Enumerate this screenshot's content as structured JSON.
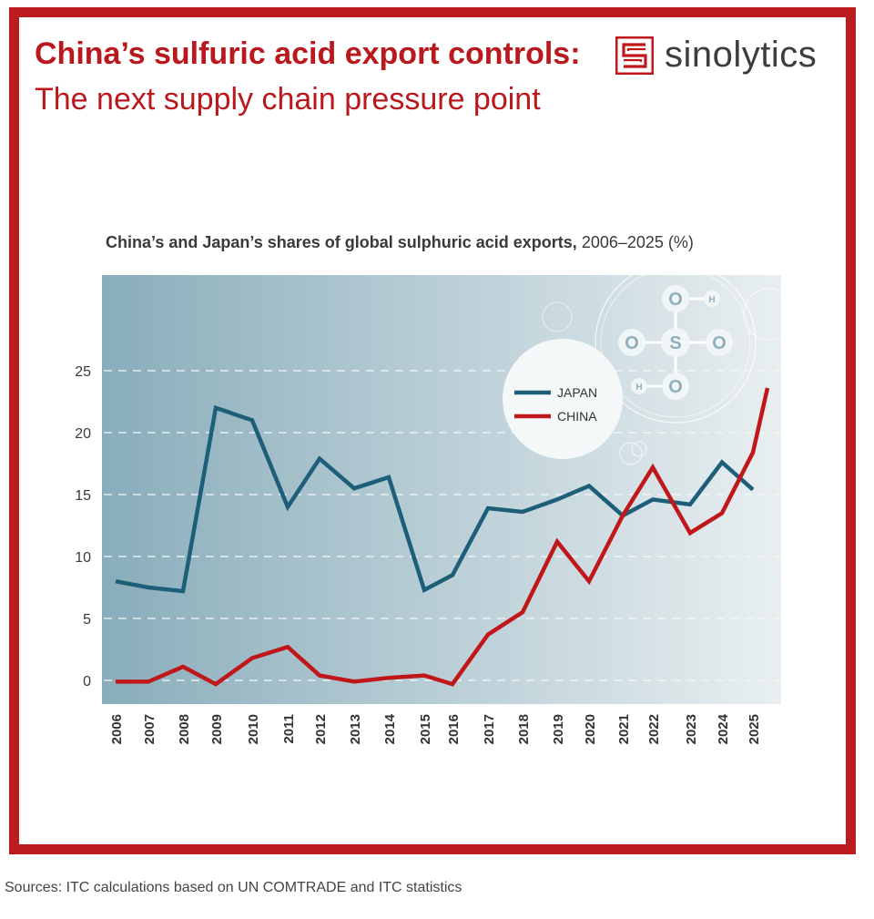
{
  "header": {
    "title_bold": "China’s sulfuric acid export controls:",
    "title_regular": "The next supply chain pressure point",
    "brand": "sinolytics"
  },
  "chart": {
    "title_bold": "China’s and Japan’s shares of global sulphuric acid exports,",
    "title_regular": "2006–2025 (%)",
    "legend": [
      {
        "label": "JAPAN",
        "color": "#1d5f78"
      },
      {
        "label": "CHINA",
        "color": "#c0171b"
      }
    ],
    "molecule": {
      "center": "S",
      "oxygens": [
        "O",
        "O",
        "O",
        "O"
      ],
      "hydrogens": [
        "H",
        "H"
      ]
    }
  },
  "footer": {
    "source": "Sources: ITC calculations based on UN COMTRADE and ITC statistics"
  },
  "colors": {
    "frame": "#bb1c1e",
    "japan": "#1d5f78",
    "china": "#c0171b",
    "plot_bg_left": "#89adbb",
    "plot_bg_right": "#e9eff1"
  },
  "chart_data": {
    "type": "line",
    "title": "China’s and Japan’s shares of global sulphuric acid exports, 2006–2025 (%)",
    "xlabel": "",
    "ylabel": "",
    "categories": [
      "2006",
      "2007",
      "2008",
      "2009",
      "2010",
      "2011",
      "2012",
      "2013",
      "2014",
      "2015",
      "2016",
      "2017",
      "2018",
      "2019",
      "2020",
      "2021",
      "2022",
      "2023",
      "2024",
      "2025"
    ],
    "series": [
      {
        "name": "JAPAN",
        "color": "#1d5f78",
        "values": [
          8.0,
          7.5,
          7.2,
          22.0,
          21.0,
          14.0,
          17.9,
          15.5,
          16.4,
          7.3,
          8.5,
          13.9,
          13.6,
          14.6,
          15.7,
          13.3,
          14.6,
          14.2,
          17.6,
          15.4
        ]
      },
      {
        "name": "CHINA",
        "color": "#c0171b",
        "values": [
          -0.1,
          -0.1,
          1.1,
          -0.3,
          1.8,
          2.7,
          0.4,
          -0.1,
          0.2,
          0.4,
          -0.3,
          3.7,
          5.5,
          11.2,
          8.0,
          13.3,
          17.2,
          11.9,
          13.5,
          18.4
        ],
        "extension_end_value": 23.6
      }
    ],
    "yticks": [
      0,
      5,
      10,
      15,
      20,
      25
    ],
    "ylim": [
      -2,
      32
    ],
    "grid": true,
    "grid_style": "dashed-horizontal",
    "legend_position": "upper-center (inside white circle)"
  }
}
